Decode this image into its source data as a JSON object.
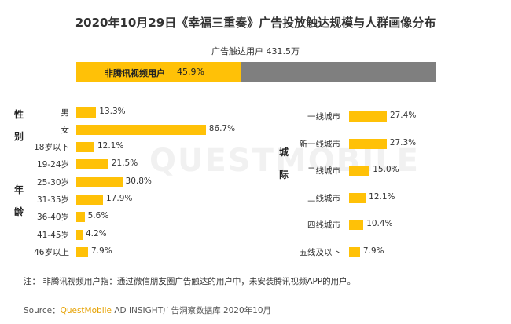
{
  "title": "2020年10月29日《幸福三重奏》广告投放触达规模与人群画像分布",
  "reach": {
    "label": "广告触达用户 431.5万",
    "segment_label": "非腾讯视频用户",
    "segment_value": "45.9%",
    "segment_fraction": 0.459
  },
  "watermark": "QUESTMOBILE",
  "note": "注：  非腾讯视频用户指：通过微信朋友圈广告触达的用户中，未安装腾讯视频APP的用户。",
  "source": {
    "prefix": "Source：",
    "brand": "QuestMobile",
    "rest": " AD INSIGHT广告洞察数据库 2020年10月"
  },
  "chart_data": [
    {
      "type": "bar",
      "group": [
        "性",
        "别"
      ],
      "categories": [
        "男",
        "女"
      ],
      "values": [
        13.3,
        86.7
      ],
      "labels": [
        "13.3%",
        "86.7%"
      ]
    },
    {
      "type": "bar",
      "group": [
        "年",
        "龄"
      ],
      "categories": [
        "18岁以下",
        "19-24岁",
        "25-30岁",
        "31-35岁",
        "36-40岁",
        "41-45岁",
        "46岁以上"
      ],
      "values": [
        12.1,
        21.5,
        30.8,
        17.9,
        5.6,
        4.2,
        7.9
      ],
      "labels": [
        "12.1%",
        "21.5%",
        "30.8%",
        "17.9%",
        "5.6%",
        "4.2%",
        "7.9%"
      ]
    },
    {
      "type": "bar",
      "group": [
        "城",
        "际"
      ],
      "categories": [
        "一线城市",
        "新一线城市",
        "二线城市",
        "三线城市",
        "四线城市",
        "五线及以下"
      ],
      "values": [
        27.4,
        27.3,
        15.0,
        12.1,
        10.4,
        7.9
      ],
      "labels": [
        "27.4%",
        "27.3%",
        "15.0%",
        "12.1%",
        "10.4%",
        "7.9%"
      ]
    }
  ]
}
